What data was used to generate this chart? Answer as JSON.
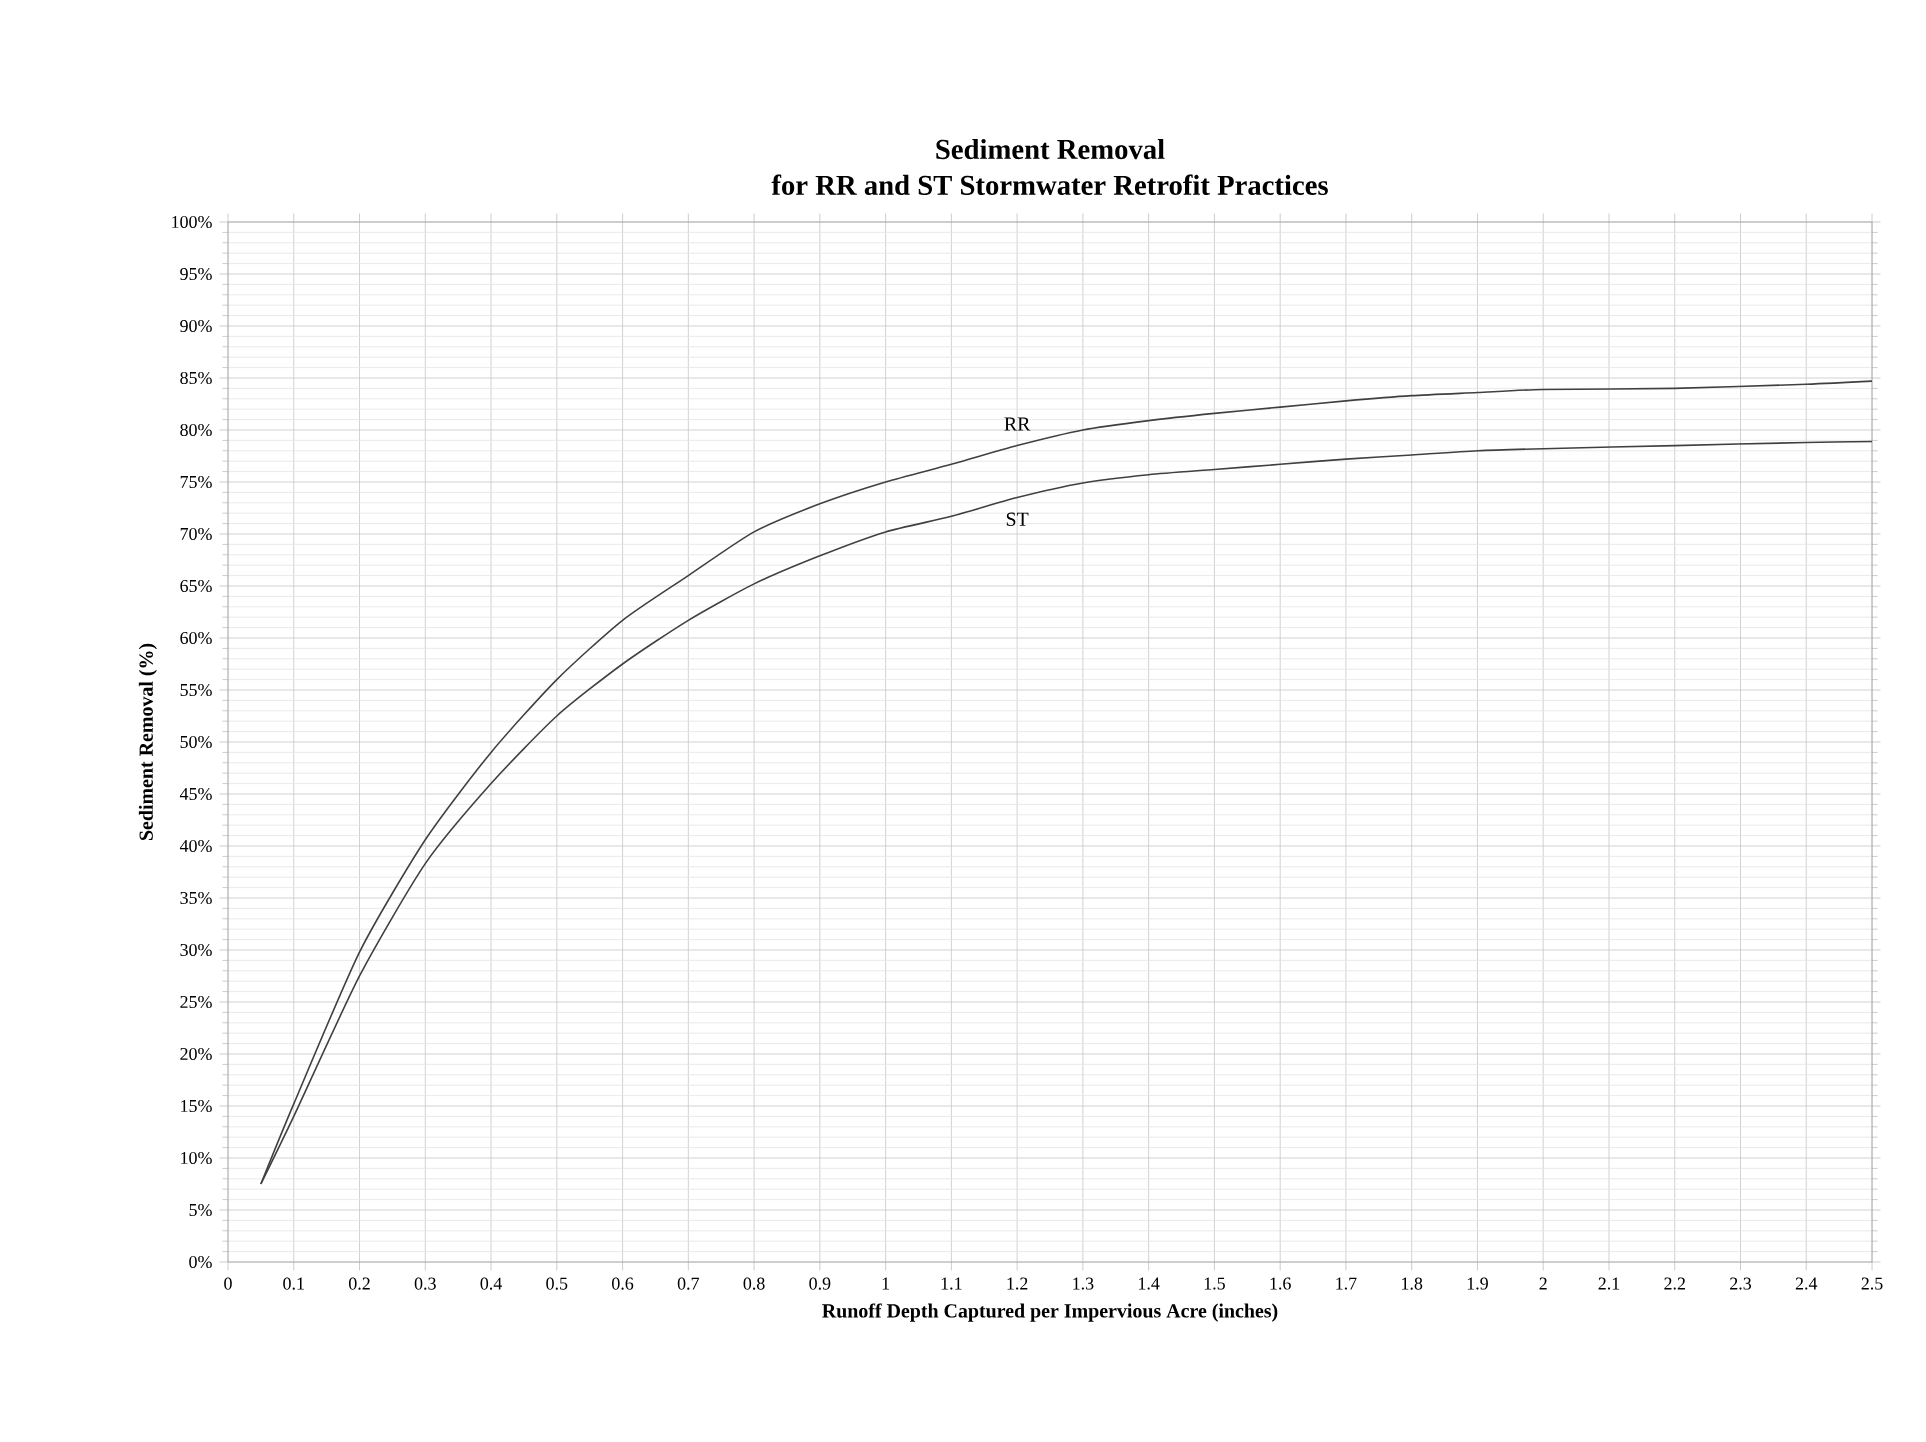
{
  "chart_data": {
    "type": "line",
    "title": "Sediment Removal\nfor RR and ST Stormwater Retrofit Practices",
    "xlabel": "Runoff Depth Captured per Impervious Acre (inches)",
    "ylabel": "Sediment Removal (%)",
    "x": [
      0.05,
      0.1,
      0.2,
      0.3,
      0.4,
      0.5,
      0.6,
      0.7,
      0.8,
      0.9,
      1.0,
      1.1,
      1.2,
      1.3,
      1.4,
      1.5,
      1.6,
      1.7,
      1.8,
      1.9,
      2.0,
      2.2,
      2.4,
      2.5
    ],
    "series": [
      {
        "name": "RR",
        "color": "#404040",
        "values": [
          7.5,
          15.2,
          29.8,
          40.6,
          49,
          56,
          61.7,
          66,
          70.2,
          72.9,
          75,
          76.7,
          78.5,
          80,
          80.9,
          81.6,
          82.2,
          82.8,
          83.3,
          83.6,
          83.9,
          84,
          84.4,
          84.7
        ]
      },
      {
        "name": "ST",
        "color": "#404040",
        "values": [
          7.5,
          14,
          27.5,
          38.3,
          46,
          52.5,
          57.5,
          61.7,
          65.2,
          67.9,
          70.2,
          71.7,
          73.5,
          74.9,
          75.7,
          76.2,
          76.7,
          77.2,
          77.6,
          78,
          78.2,
          78.5,
          78.8,
          78.9
        ]
      }
    ],
    "xlim": [
      0,
      2.5
    ],
    "ylim": [
      0,
      100
    ],
    "xticks": [
      0,
      0.1,
      0.2,
      0.3,
      0.4,
      0.5,
      0.6,
      0.7,
      0.8,
      0.9,
      1,
      1.1,
      1.2,
      1.3,
      1.4,
      1.5,
      1.6,
      1.7,
      1.8,
      1.9,
      2,
      2.1,
      2.2,
      2.3,
      2.4,
      2.5
    ],
    "yticks": [
      {
        "value": 0,
        "label": "0%"
      },
      {
        "value": 5,
        "label": "5%"
      },
      {
        "value": 10,
        "label": "10%"
      },
      {
        "value": 15,
        "label": "15%"
      },
      {
        "value": 20,
        "label": "20%"
      },
      {
        "value": 25,
        "label": "25%"
      },
      {
        "value": 30,
        "label": "30%"
      },
      {
        "value": 35,
        "label": "35%"
      },
      {
        "value": 40,
        "label": "40%"
      },
      {
        "value": 45,
        "label": "45%"
      },
      {
        "value": 50,
        "label": "50%"
      },
      {
        "value": 55,
        "label": "55%"
      },
      {
        "value": 60,
        "label": "60%"
      },
      {
        "value": 65,
        "label": "65%"
      },
      {
        "value": 70,
        "label": "70%"
      },
      {
        "value": 75,
        "label": "75%"
      },
      {
        "value": 80,
        "label": "80%"
      },
      {
        "value": 85,
        "label": "85%"
      },
      {
        "value": 90,
        "label": "90%"
      },
      {
        "value": 95,
        "label": "95%"
      },
      {
        "value": 100,
        "label": "100%"
      }
    ],
    "grid": true,
    "legend": false,
    "marker": "none",
    "line_style": "solid"
  }
}
